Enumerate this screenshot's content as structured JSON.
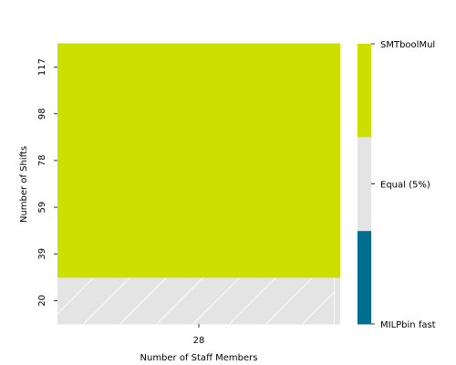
{
  "chart_data": {
    "type": "heatmap",
    "title": "",
    "xlabel": "Number of Staff Members",
    "ylabel": "Number of Shifts",
    "x_categories": [
      "28"
    ],
    "y_categories": [
      "20",
      "39",
      "59",
      "78",
      "98",
      "117"
    ],
    "cells": [
      {
        "x": "28",
        "y": "20",
        "value": "Equal (5%)",
        "hatched": true
      },
      {
        "x": "28",
        "y": "39",
        "value": "SMTboolMul"
      },
      {
        "x": "28",
        "y": "59",
        "value": "SMTboolMul"
      },
      {
        "x": "28",
        "y": "78",
        "value": "SMTboolMul"
      },
      {
        "x": "28",
        "y": "98",
        "value": "SMTboolMul"
      },
      {
        "x": "28",
        "y": "117",
        "value": "SMTboolMul"
      }
    ],
    "colorbar": {
      "labels": [
        "MILPbin fast",
        "Equal (5%)",
        "SMTboolMul"
      ],
      "colors": [
        "#006e8f",
        "#e4e4e4",
        "#cce000"
      ]
    },
    "hatch_color": "#ffffff"
  }
}
